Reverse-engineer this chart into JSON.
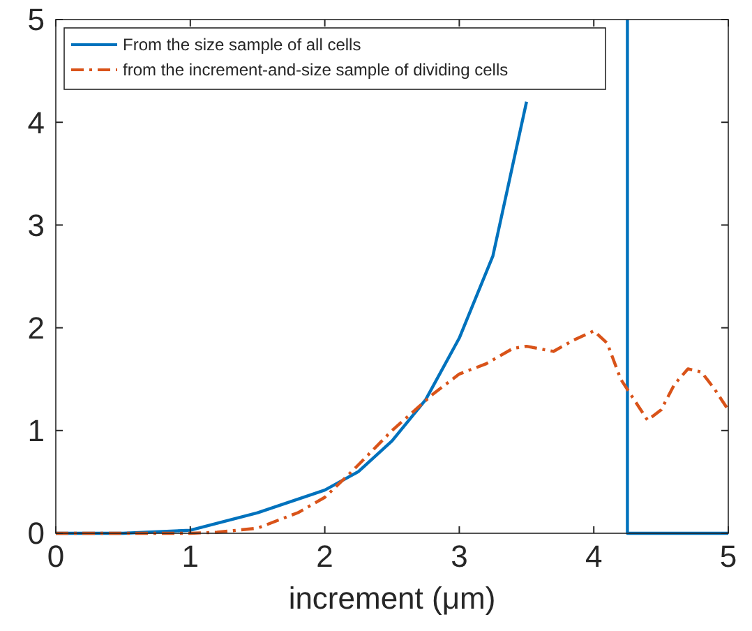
{
  "chart_data": {
    "type": "line",
    "xlabel": "increment (μm)",
    "xlim": [
      0,
      5
    ],
    "ylim": [
      0,
      5
    ],
    "xticks": [
      0,
      1,
      2,
      3,
      4,
      5
    ],
    "yticks": [
      0,
      1,
      2,
      3,
      4,
      5
    ],
    "legend": "top left",
    "series": [
      {
        "name": "From the size sample of all cells",
        "color": "#0072bd",
        "line_style": "solid",
        "x": [
          0,
          0.5,
          1,
          1.5,
          2,
          2.25,
          2.5,
          2.75,
          3,
          3.25,
          3.4,
          3.5
        ],
        "values": [
          0,
          0,
          0.03,
          0.2,
          0.42,
          0.6,
          0.9,
          1.3,
          1.9,
          2.7,
          3.6,
          4.2
        ]
      },
      {
        "color": "#0072bd",
        "line_style": "solid",
        "x": [
          4.25,
          4.25,
          4.6,
          5
        ],
        "values": [
          5,
          0,
          0,
          0
        ]
      },
      {
        "name": "from the increment-and-size sample of dividing cells",
        "color": "#d95319",
        "line_style": "dashed",
        "x": [
          0,
          0.5,
          1,
          1.2,
          1.5,
          1.8,
          2,
          2.2,
          2.5,
          2.8,
          3,
          3.2,
          3.4,
          3.5,
          3.7,
          3.85,
          4,
          4.1,
          4.2,
          4.3,
          4.4,
          4.5,
          4.6,
          4.7,
          4.8,
          4.9,
          5
        ],
        "values": [
          0,
          0,
          0,
          0.01,
          0.05,
          0.2,
          0.35,
          0.6,
          1.0,
          1.35,
          1.55,
          1.65,
          1.8,
          1.82,
          1.77,
          1.88,
          1.97,
          1.85,
          1.5,
          1.3,
          1.1,
          1.2,
          1.45,
          1.6,
          1.57,
          1.4,
          1.2
        ]
      }
    ]
  }
}
